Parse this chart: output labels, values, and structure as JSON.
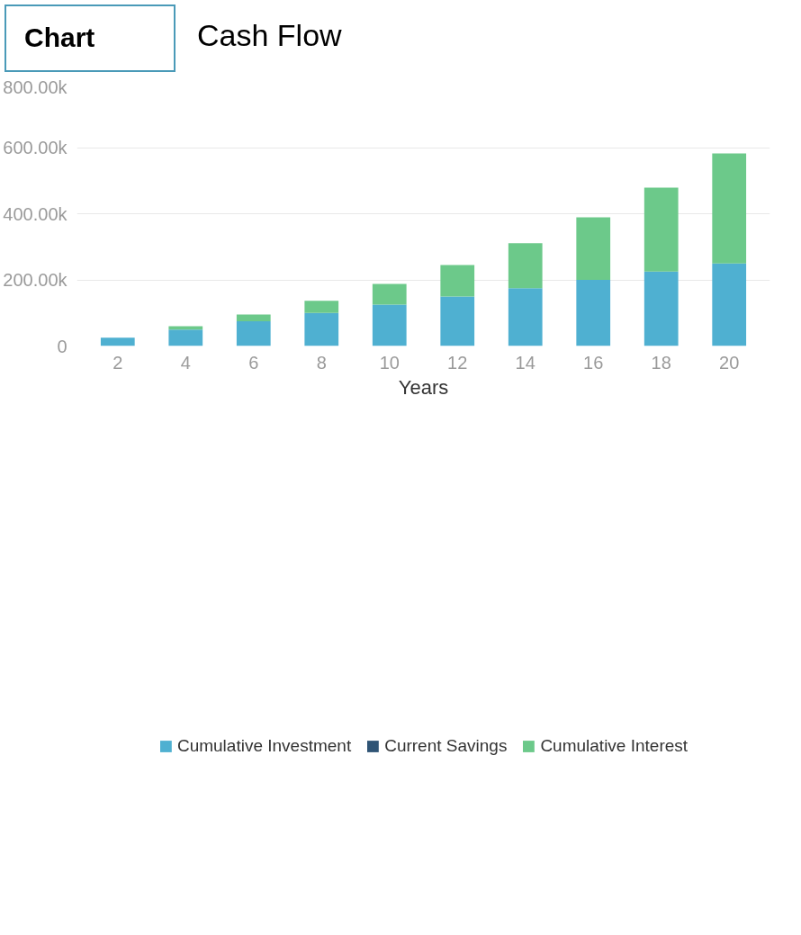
{
  "chart_data": {
    "type": "bar",
    "title": "Cash Flow",
    "annotations": [
      "Chart"
    ],
    "categories": [
      "2",
      "4",
      "6",
      "8",
      "10",
      "12",
      "14",
      "16",
      "18",
      "20"
    ],
    "stacked": true,
    "xlabel": "Years",
    "series": [
      {
        "name": "Cumulative Investment",
        "color": "#4fb0d1",
        "values": [
          25000,
          50000,
          75000,
          100000,
          125000,
          150000,
          175000,
          200000,
          225000,
          250000
        ]
      },
      {
        "name": "Current Savings",
        "color": "#2f5475",
        "values": [
          0,
          0,
          0,
          0,
          0,
          0,
          0,
          0,
          0,
          0
        ]
      },
      {
        "name": "Cumulative Interest",
        "color": "#6cc98a",
        "values": [
          null,
          10000,
          20000,
          37000,
          63000,
          95000,
          136000,
          189000,
          254000,
          332000
        ]
      }
    ],
    "ylim": [
      0,
      800000
    ],
    "yticks": [
      {
        "value": 0,
        "label": "0"
      },
      {
        "value": 200000,
        "label": "200.00k"
      },
      {
        "value": 400000,
        "label": "400.00k"
      },
      {
        "value": 600000,
        "label": "600.00k"
      },
      {
        "value": 800000,
        "label": "800.00k"
      }
    ],
    "grid": "y",
    "legend": "bottom"
  }
}
